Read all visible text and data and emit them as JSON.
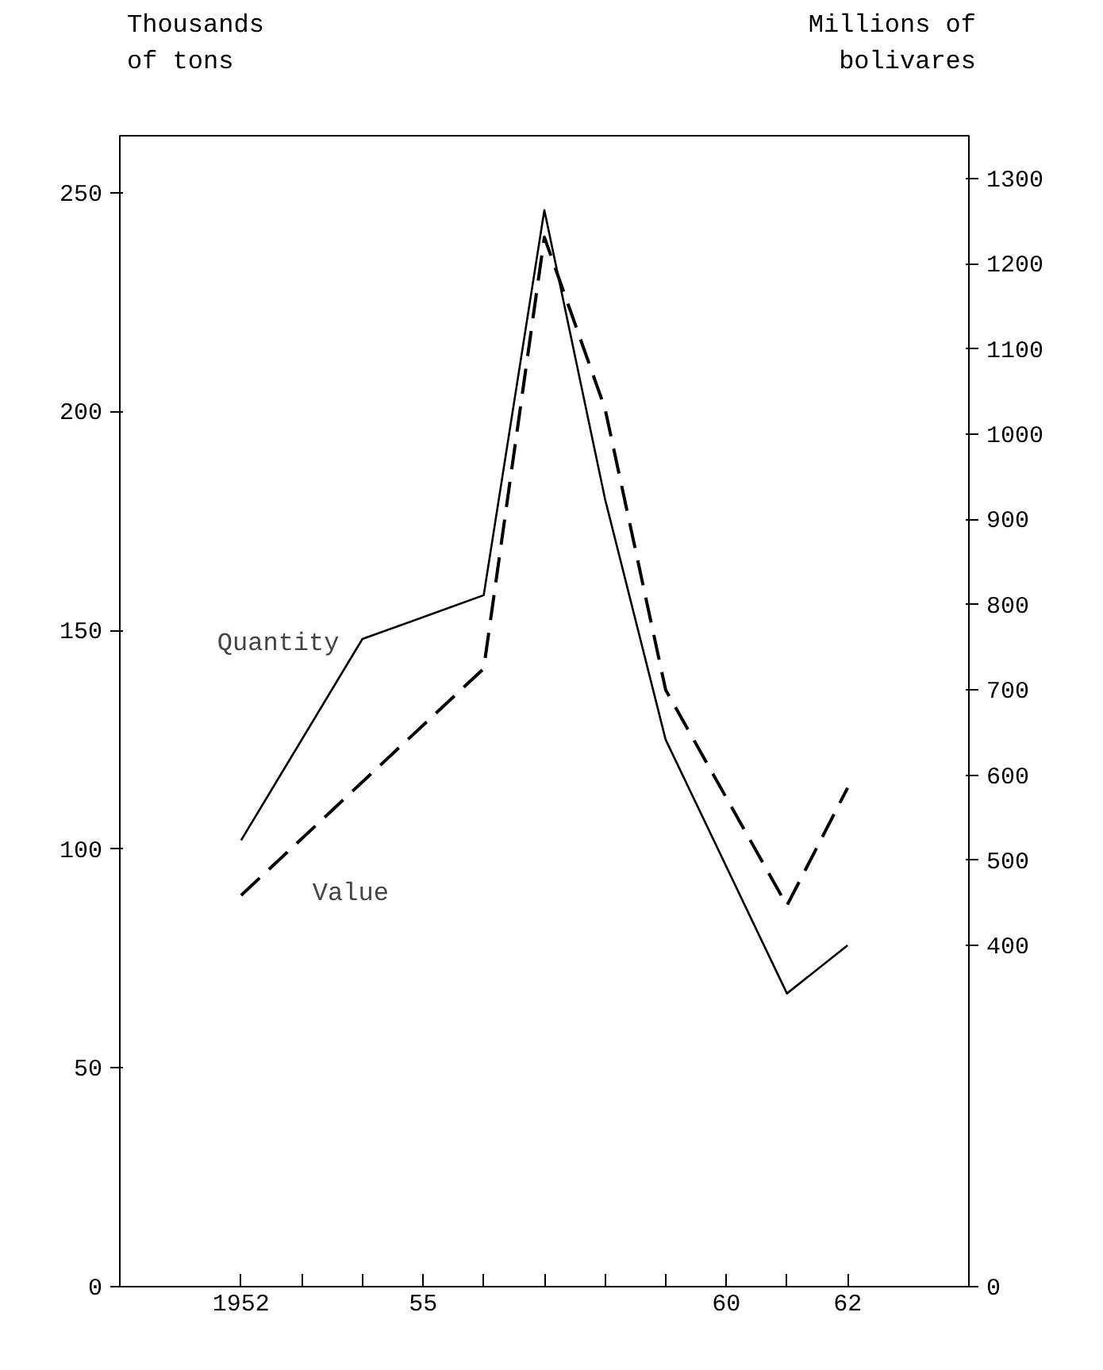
{
  "chart_data": {
    "type": "line",
    "ylabel": "Thousands\nof tons",
    "y2label": "Millions of\nbolivares",
    "xlim": [
      1950,
      1964
    ],
    "xticks": [
      1952,
      {
        "value": 1953,
        "label": null
      },
      {
        "value": 1954,
        "label": null
      },
      {
        "value": 1955,
        "label": "55"
      },
      {
        "value": 1956,
        "label": null
      },
      {
        "value": 1957,
        "label": null
      },
      {
        "value": 1958,
        "label": null
      },
      {
        "value": 1959,
        "label": null
      },
      {
        "value": 1960,
        "label": "60"
      },
      {
        "value": 1961,
        "label": null
      },
      {
        "value": 1962,
        "label": "62"
      }
    ],
    "ylim": [
      0,
      263
    ],
    "yticks": [
      0,
      50,
      100,
      150,
      200,
      250
    ],
    "y2lim": [
      0,
      1350
    ],
    "y2ticks": [
      0,
      400,
      500,
      600,
      700,
      800,
      900,
      1000,
      1100,
      1200,
      1300
    ],
    "grid": false,
    "series": [
      {
        "name": "Quantity",
        "color": "#000000",
        "line_style": "solid",
        "x": [
          1952,
          1954,
          1956,
          1957,
          1958,
          1959,
          1961,
          1962
        ],
        "values": [
          102,
          148,
          158,
          246,
          180,
          125,
          67,
          78
        ]
      },
      {
        "name": "Value",
        "color": "#000000",
        "line_style": "dashed",
        "axis": "y2",
        "x": [
          1952,
          1956,
          1957,
          1958,
          1959,
          1961,
          1962
        ],
        "values": [
          459,
          725,
          1231,
          1030,
          700,
          447,
          585
        ]
      }
    ]
  }
}
